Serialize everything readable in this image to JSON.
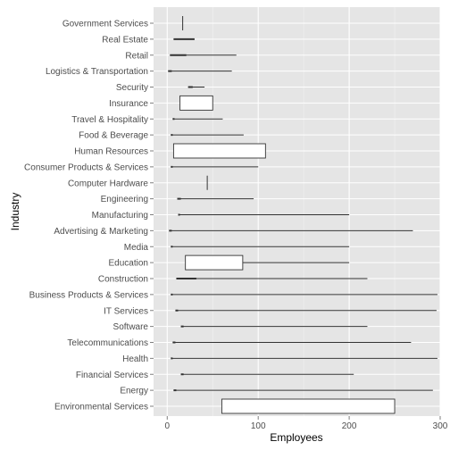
{
  "chart_data": {
    "type": "boxplot",
    "xlabel": "Employees",
    "ylabel": "Industry",
    "xlim": [
      -15,
      300
    ],
    "xticks": [
      0,
      100,
      200,
      300
    ],
    "grid": true,
    "colors": {
      "panel": "#e5e5e5",
      "grid_major": "#ffffff",
      "grid_minor": "#f2f2f2",
      "line": "#333333",
      "box_fill": "#ffffff"
    },
    "categories": [
      "Government Services",
      "Real Estate",
      "Retail",
      "Logistics & Transportation",
      "Security",
      "Insurance",
      "Travel & Hospitality",
      "Food & Beverage",
      "Human Resources",
      "Consumer Products & Services",
      "Computer Hardware",
      "Engineering",
      "Manufacturing",
      "Advertising & Marketing",
      "Media",
      "Education",
      "Construction",
      "Business Products & Services",
      "IT Services",
      "Software",
      "Telecommunications",
      "Health",
      "Financial Services",
      "Energy",
      "Environmental Services"
    ],
    "boxes": [
      {
        "category": "Government Services",
        "min": 17,
        "q1": 17,
        "median": 17,
        "q3": 17,
        "max": 17,
        "vertical": true
      },
      {
        "category": "Real Estate",
        "min": 7,
        "q1": 7,
        "median": 12,
        "q3": 30,
        "max": 30
      },
      {
        "category": "Retail",
        "min": 3,
        "q1": 3,
        "median": 10,
        "q3": 21,
        "max": 76
      },
      {
        "category": "Logistics & Transportation",
        "min": 1,
        "q1": 1,
        "median": 5,
        "q3": 5,
        "max": 71
      },
      {
        "category": "Security",
        "min": 23,
        "q1": 23,
        "median": 28,
        "q3": 28,
        "max": 41
      },
      {
        "category": "Insurance",
        "min": 14,
        "q1": 14,
        "median": 14,
        "q3": 50,
        "max": 50
      },
      {
        "category": "Travel & Hospitality",
        "min": 6,
        "q1": 6,
        "median": 8,
        "q3": 8,
        "max": 61
      },
      {
        "category": "Food & Beverage",
        "min": 4,
        "q1": 4,
        "median": 6,
        "q3": 6,
        "max": 84
      },
      {
        "category": "Human Resources",
        "min": 7,
        "q1": 7,
        "median": 50,
        "q3": 108,
        "max": 108
      },
      {
        "category": "Consumer Products & Services",
        "min": 4,
        "q1": 4,
        "median": 6,
        "q3": 6,
        "max": 100
      },
      {
        "category": "Computer Hardware",
        "min": 44,
        "q1": 44,
        "median": 44,
        "q3": 44,
        "max": 44,
        "vertical": true
      },
      {
        "category": "Engineering",
        "min": 11,
        "q1": 11,
        "median": 15,
        "q3": 15,
        "max": 95
      },
      {
        "category": "Manufacturing",
        "min": 12,
        "q1": 12,
        "median": 14,
        "q3": 14,
        "max": 200
      },
      {
        "category": "Advertising & Marketing",
        "min": 2,
        "q1": 2,
        "median": 5,
        "q3": 5,
        "max": 270
      },
      {
        "category": "Media",
        "min": 4,
        "q1": 4,
        "median": 6,
        "q3": 6,
        "max": 200
      },
      {
        "category": "Education",
        "min": 20,
        "q1": 20,
        "median": 40,
        "q3": 83,
        "max": 200
      },
      {
        "category": "Construction",
        "min": 10,
        "q1": 10,
        "median": 15,
        "q3": 32,
        "max": 220
      },
      {
        "category": "Business Products & Services",
        "min": 4,
        "q1": 4,
        "median": 6,
        "q3": 6,
        "max": 297
      },
      {
        "category": "IT Services",
        "min": 9,
        "q1": 9,
        "median": 12,
        "q3": 12,
        "max": 296
      },
      {
        "category": "Software",
        "min": 15,
        "q1": 15,
        "median": 18,
        "q3": 18,
        "max": 220
      },
      {
        "category": "Telecommunications",
        "min": 6,
        "q1": 6,
        "median": 9,
        "q3": 9,
        "max": 268
      },
      {
        "category": "Health",
        "min": 4,
        "q1": 4,
        "median": 6,
        "q3": 6,
        "max": 297
      },
      {
        "category": "Financial Services",
        "min": 15,
        "q1": 15,
        "median": 18,
        "q3": 18,
        "max": 205
      },
      {
        "category": "Energy",
        "min": 7,
        "q1": 7,
        "median": 10,
        "q3": 10,
        "max": 292
      },
      {
        "category": "Environmental Services",
        "min": 60,
        "q1": 60,
        "median": 60,
        "q3": 250,
        "max": 250
      }
    ]
  }
}
